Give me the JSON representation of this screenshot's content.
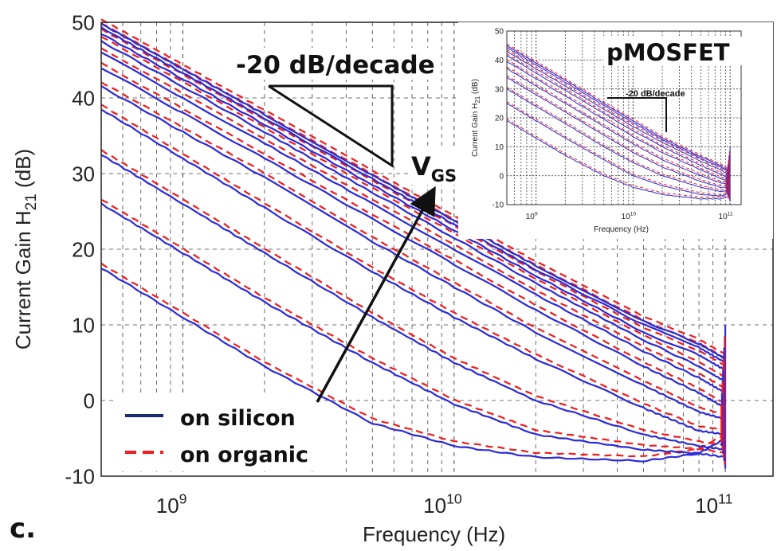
{
  "panel_label": "c.",
  "chart_data": [
    {
      "type": "line",
      "xlabel": "Frequency (Hz)",
      "ylabel": "Current Gain H21 (dB)",
      "xscale": "log",
      "xlim": [
        500000000.0,
        150000000000.0
      ],
      "ylim": [
        -10,
        50
      ],
      "xticks": [
        {
          "v": 1000000000.0,
          "label": "10^9"
        },
        {
          "v": 10000000000.0,
          "label": "10^10"
        },
        {
          "v": 100000000000.0,
          "label": "10^11"
        }
      ],
      "yticks": [
        -10,
        0,
        10,
        20,
        30,
        40,
        50
      ],
      "grid": "dashed",
      "legend_position": "bottom-left",
      "series": [
        {
          "name": "on silicon",
          "color": "#2a2ad8",
          "linestyle": "solid"
        },
        {
          "name": "on organic",
          "color": "#ee1c1c",
          "linestyle": "dashed"
        }
      ],
      "curves_common": {
        "x": [
          500000000.0,
          1000000000.0,
          2000000000.0,
          5000000000.0,
          10000000000.0,
          20000000000.0,
          50000000000.0,
          80000000000.0,
          100000000000.0
        ],
        "vgs_sweep": [
          [
            17.5,
            11.0,
            4.5,
            -3.0,
            -6.0,
            -7.5,
            -8.0,
            -7.0,
            -5.0
          ],
          [
            26.0,
            19.5,
            13.0,
            5.0,
            -0.5,
            -4.5,
            -6.5,
            -7.0,
            -7.5
          ],
          [
            32.5,
            26.0,
            19.5,
            11.0,
            5.0,
            0.0,
            -4.5,
            -6.0,
            -6.5
          ],
          [
            38.5,
            32.0,
            25.5,
            17.0,
            11.0,
            5.5,
            -1.0,
            -4.0,
            -4.5
          ],
          [
            41.5,
            35.5,
            29.5,
            21.0,
            15.0,
            9.0,
            2.0,
            -1.5,
            -2.5
          ],
          [
            44.0,
            38.0,
            32.0,
            24.0,
            18.0,
            12.0,
            4.5,
            1.0,
            -1.0
          ],
          [
            46.0,
            40.0,
            34.0,
            26.0,
            20.0,
            14.0,
            6.5,
            3.0,
            1.0
          ],
          [
            47.5,
            41.5,
            35.5,
            27.5,
            21.5,
            15.5,
            8.0,
            4.5,
            2.5
          ],
          [
            48.5,
            42.5,
            36.5,
            28.5,
            22.5,
            16.5,
            9.0,
            6.0,
            4.0
          ],
          [
            49.3,
            43.3,
            37.3,
            29.3,
            23.3,
            17.3,
            10.0,
            7.0,
            5.0
          ],
          [
            49.8,
            43.8,
            37.8,
            29.8,
            23.8,
            17.8,
            10.5,
            7.5,
            5.5
          ]
        ]
      },
      "annotations": [
        "-20 dB/decade",
        "VGS"
      ]
    },
    {
      "type": "line",
      "title": "pMOSFET",
      "xlabel": "Frequency (Hz)",
      "ylabel": "Current Gain H21 (dB)",
      "xscale": "log",
      "xlim": [
        500000000.0,
        130000000000.0
      ],
      "ylim": [
        -10,
        50
      ],
      "xticks": [
        {
          "v": 1000000000.0,
          "label": "10^9"
        },
        {
          "v": 10000000000.0,
          "label": "10^10"
        },
        {
          "v": 100000000000.0,
          "label": "10^11"
        }
      ],
      "yticks": [
        -10,
        0,
        10,
        20,
        30,
        40,
        50
      ],
      "annotations": [
        "-20 dB/decade"
      ],
      "curves_common": {
        "x": [
          500000000.0,
          1000000000.0,
          2000000000.0,
          5000000000.0,
          10000000000.0,
          20000000000.0,
          50000000000.0,
          80000000000.0,
          100000000000.0
        ],
        "vgs_sweep": [
          [
            19.0,
            13.0,
            7.0,
            0.0,
            -4.0,
            -6.5,
            -8.0,
            -8.0,
            -7.0
          ],
          [
            25.0,
            19.0,
            13.0,
            5.5,
            0.0,
            -3.5,
            -6.5,
            -7.0,
            -6.0
          ],
          [
            30.0,
            24.0,
            18.0,
            10.0,
            4.5,
            0.0,
            -4.0,
            -5.5,
            -5.0
          ],
          [
            34.0,
            28.0,
            22.0,
            14.0,
            8.0,
            3.0,
            -2.0,
            -4.0,
            -4.0
          ],
          [
            37.0,
            31.0,
            25.0,
            17.0,
            11.0,
            5.5,
            0.0,
            -2.5,
            -3.0
          ],
          [
            39.5,
            33.5,
            27.5,
            19.5,
            13.5,
            8.0,
            2.0,
            -1.0,
            -2.0
          ],
          [
            41.5,
            35.5,
            29.5,
            21.5,
            15.5,
            10.0,
            3.5,
            0.5,
            -1.0
          ],
          [
            43.0,
            37.0,
            31.0,
            23.0,
            17.0,
            11.5,
            5.0,
            2.0,
            0.0
          ],
          [
            44.3,
            38.3,
            32.3,
            24.3,
            18.3,
            12.5,
            6.0,
            3.0,
            1.0
          ],
          [
            45.0,
            39.0,
            33.0,
            25.0,
            19.0,
            13.0,
            6.5,
            3.5,
            1.5
          ]
        ]
      }
    }
  ]
}
